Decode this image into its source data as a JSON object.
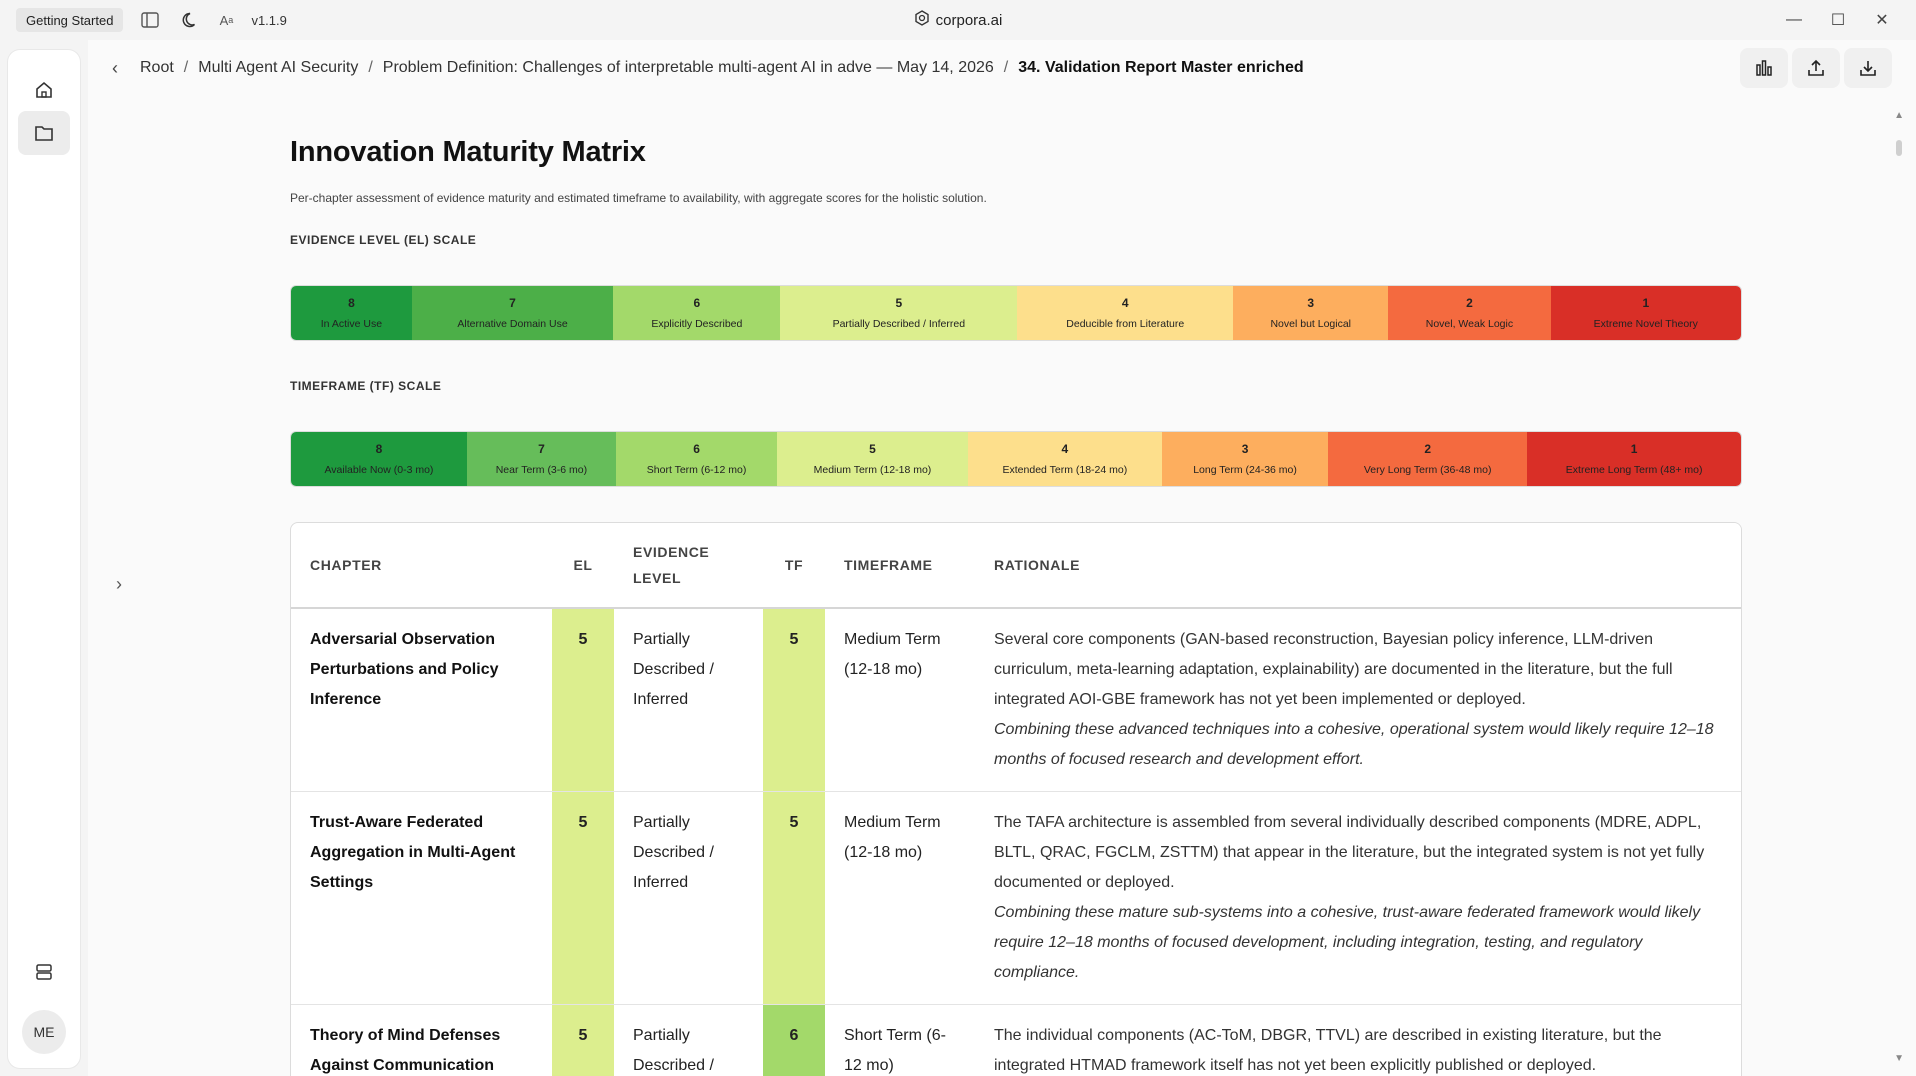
{
  "titlebar": {
    "getting_started": "Getting Started",
    "version": "v1.1.9",
    "app_name": "corpora.ai"
  },
  "breadcrumb": {
    "items": [
      "Root",
      "Multi Agent AI Security",
      "Problem Definition: Challenges of interpretable multi-agent AI in adve — May 14, 2026"
    ],
    "current": "34. Validation Report Master enriched"
  },
  "user": {
    "initials": "ME"
  },
  "page": {
    "title": "Innovation Maturity Matrix",
    "subtitle": "Per-chapter assessment of evidence maturity and estimated timeframe to availability, with aggregate scores for the holistic solution."
  },
  "el_scale": {
    "label": "EVIDENCE LEVEL (EL) SCALE",
    "items": [
      {
        "num": "8",
        "label": "In Active Use",
        "color": "#1e9a3e",
        "flex": 99
      },
      {
        "num": "7",
        "label": "Alternative Domain Use",
        "color": "#4caf48",
        "flex": 165
      },
      {
        "num": "6",
        "label": "Explicitly Described",
        "color": "#a3d96a",
        "flex": 137
      },
      {
        "num": "5",
        "label": "Partially Described / Inferred",
        "color": "#dcee8e",
        "flex": 194
      },
      {
        "num": "4",
        "label": "Deducible from Literature",
        "color": "#fddf8c",
        "flex": 177
      },
      {
        "num": "3",
        "label": "Novel but Logical",
        "color": "#fdae5e",
        "flex": 127
      },
      {
        "num": "2",
        "label": "Novel, Weak Logic",
        "color": "#f46a3f",
        "flex": 133
      },
      {
        "num": "1",
        "label": "Extreme Novel Theory",
        "color": "#d92f27",
        "flex": 156
      }
    ]
  },
  "tf_scale": {
    "label": "TIMEFRAME (TF) SCALE",
    "items": [
      {
        "num": "8",
        "label": "Available Now (0-3 mo)",
        "color": "#1e9a3e",
        "flex": 144
      },
      {
        "num": "7",
        "label": "Near Term (3-6 mo)",
        "color": "#66bd5a",
        "flex": 122
      },
      {
        "num": "6",
        "label": "Short Term (6-12 mo)",
        "color": "#a3d96a",
        "flex": 132
      },
      {
        "num": "5",
        "label": "Medium Term (12-18 mo)",
        "color": "#dcee8e",
        "flex": 156
      },
      {
        "num": "4",
        "label": "Extended Term (18-24 mo)",
        "color": "#fddf8c",
        "flex": 159
      },
      {
        "num": "3",
        "label": "Long Term (24-36 mo)",
        "color": "#fdae5e",
        "flex": 136
      },
      {
        "num": "2",
        "label": "Very Long Term (36-48 mo)",
        "color": "#f46a3f",
        "flex": 163
      },
      {
        "num": "1",
        "label": "Extreme Long Term (48+ mo)",
        "color": "#d92f27",
        "flex": 175
      }
    ]
  },
  "table": {
    "headers": {
      "chapter": "CHAPTER",
      "el": "EL",
      "evidence_level": "EVIDENCE LEVEL",
      "tf": "TF",
      "timeframe": "TIMEFRAME",
      "rationale": "RATIONALE"
    },
    "rows": [
      {
        "chapter": "Adversarial Observation Perturbations and Policy Inference",
        "el": "5",
        "el_color": "#dcee8e",
        "evidence": "Partially Described / Inferred",
        "tf": "5",
        "tf_color": "#dcee8e",
        "timeframe": "Medium Term (12-18 mo)",
        "rationale": "Several core components (GAN-based reconstruction, Bayesian policy inference, LLM-driven curriculum, meta-learning adaptation, explainability) are documented in the literature, but the full integrated AOI-GBE framework has not yet been implemented or deployed.",
        "rationale_italic": "Combining these advanced techniques into a cohesive, operational system would likely require 12–18 months of focused research and development effort."
      },
      {
        "chapter": "Trust-Aware Federated Aggregation in Multi-Agent Settings",
        "el": "5",
        "el_color": "#dcee8e",
        "evidence": "Partially Described / Inferred",
        "tf": "5",
        "tf_color": "#dcee8e",
        "timeframe": "Medium Term (12-18 mo)",
        "rationale": "The TAFA architecture is assembled from several individually described components (MDRE, ADPL, BLTL, QRAC, FGCLM, ZSTTM) that appear in the literature, but the integrated system is not yet fully documented or deployed.",
        "rationale_italic": "Combining these mature sub-systems into a cohesive, trust-aware federated framework would likely require 12–18 months of focused development, including integration, testing, and regulatory compliance."
      },
      {
        "chapter": "Theory of Mind Defenses Against Communication",
        "el": "5",
        "el_color": "#dcee8e",
        "evidence": "Partially Described /",
        "tf": "6",
        "tf_color": "#a3d96a",
        "timeframe": "Short Term (6-12 mo)",
        "rationale": "The individual components (AC-ToM, DBGR, TTVL) are described in existing literature, but the integrated HTMAD framework itself has not yet been explicitly published or deployed.",
        "rationale_italic": ""
      }
    ]
  }
}
